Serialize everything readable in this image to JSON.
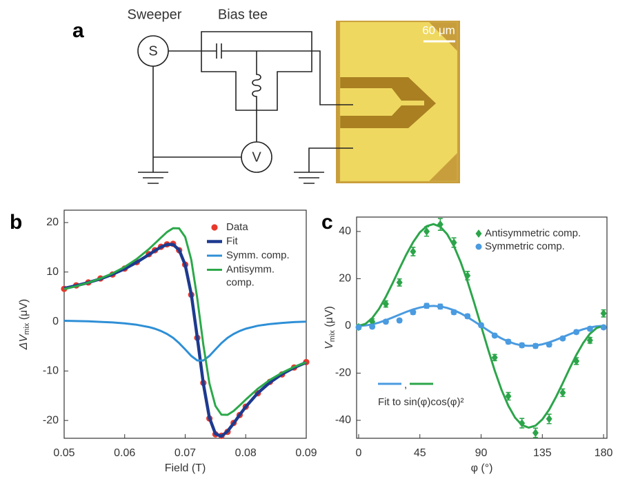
{
  "diagram": {
    "panel_label": "a",
    "sweeper": "Sweeper",
    "bias_tee": "Bias tee",
    "source_symbol": "S",
    "meter_symbol": "V",
    "scale_bar": "60 μm"
  },
  "chart_data": [
    {
      "type": "line",
      "panel_label": "b",
      "x_label": "Field (T)",
      "y_label": {
        "main": "ΔV",
        "sub": "mix",
        "unit": " (μV)"
      },
      "x": [
        0.05,
        0.052,
        0.054,
        0.056,
        0.058,
        0.06,
        0.062,
        0.064,
        0.065,
        0.066,
        0.067,
        0.068,
        0.069,
        0.07,
        0.071,
        0.072,
        0.073,
        0.074,
        0.075,
        0.076,
        0.077,
        0.078,
        0.079,
        0.08,
        0.082,
        0.084,
        0.086,
        0.088,
        0.09
      ],
      "series": [
        {
          "name": "Data",
          "mode": "markers",
          "color": "#e8382c",
          "values": [
            6.6,
            7.3,
            7.9,
            8.7,
            9.5,
            10.7,
            12.0,
            13.6,
            14.4,
            15.1,
            15.6,
            15.7,
            14.4,
            11.5,
            5.4,
            -3.3,
            -12.4,
            -19.6,
            -22.8,
            -23.1,
            -22.3,
            -20.5,
            -18.9,
            -17.2,
            -14.5,
            -12.2,
            -10.7,
            -9.3,
            -8.2
          ]
        },
        {
          "name": "Fit",
          "mode": "line",
          "color": "#1d3a8f",
          "values": [
            6.69,
            7.23,
            7.88,
            8.63,
            9.55,
            10.65,
            11.98,
            13.52,
            14.32,
            15.05,
            15.57,
            15.56,
            14.47,
            11.44,
            5.53,
            -3.19,
            -12.55,
            -19.45,
            -22.72,
            -23.19,
            -22.18,
            -20.59,
            -18.87,
            -17.24,
            -14.45,
            -12.3,
            -10.63,
            -9.31,
            -8.27
          ]
        },
        {
          "name": "Symm. comp.",
          "mode": "line",
          "color": "#2e8fd6",
          "values": [
            0.14,
            0.09,
            0.03,
            -0.07,
            -0.19,
            -0.38,
            -0.66,
            -1.12,
            -1.46,
            -1.91,
            -2.51,
            -3.31,
            -4.36,
            -5.64,
            -6.96,
            -7.87,
            -7.87,
            -6.96,
            -5.64,
            -4.36,
            -3.31,
            -2.51,
            -1.91,
            -1.46,
            -0.86,
            -0.51,
            -0.28,
            -0.12,
            -0.02
          ]
        },
        {
          "name": "Antisymm. comp.",
          "mode": "line",
          "color": "#2ba84a",
          "values": [
            6.55,
            7.14,
            7.85,
            8.7,
            9.74,
            11.03,
            12.64,
            14.64,
            15.78,
            16.96,
            18.08,
            18.87,
            18.83,
            17.08,
            12.49,
            4.68,
            -4.68,
            -12.49,
            -17.08,
            -18.83,
            -18.87,
            -18.08,
            -16.96,
            -15.78,
            -13.59,
            -11.79,
            -10.35,
            -9.19,
            -8.25
          ]
        }
      ],
      "xlim": [
        0.05,
        0.09
      ],
      "xticks": [
        0.05,
        0.06,
        0.07,
        0.08,
        0.09
      ],
      "ylim": [
        -23.6,
        22.5
      ],
      "yticks": [
        -20,
        -10,
        0,
        10,
        20
      ]
    },
    {
      "type": "scatter",
      "panel_label": "c",
      "x_label": "φ (°)",
      "y_label": {
        "main": "V",
        "sub": "mix",
        "unit": " (μV)"
      },
      "series": [
        {
          "name": "Antisymmetric comp.",
          "marker": "diamond",
          "color": "#2ca54a",
          "x": [
            0,
            10,
            20,
            30,
            40,
            50,
            60,
            70,
            80,
            100,
            110,
            120,
            130,
            140,
            150,
            160,
            170,
            180
          ],
          "values": [
            -0.5,
            1.8,
            9.3,
            18.4,
            31.5,
            40,
            43,
            35.3,
            21.3,
            -13.4,
            -29.8,
            -41.2,
            -45.3,
            -39.4,
            -28.3,
            -14.9,
            -6.1,
            5.3
          ],
          "errors": [
            1,
            1.2,
            1.3,
            1.5,
            1.8,
            2,
            2.5,
            2,
            1.8,
            1.3,
            1.6,
            2,
            2,
            2,
            1.6,
            1.4,
            1.2,
            1.5
          ]
        },
        {
          "name": "Symmetric comp.",
          "marker": "circle",
          "color": "#4a9be0",
          "x": [
            0,
            10,
            20,
            30,
            40,
            50,
            60,
            70,
            80,
            90,
            100,
            110,
            120,
            130,
            140,
            150,
            160,
            170,
            180
          ],
          "values": [
            -0.6,
            -0.3,
            1.8,
            2.3,
            5.8,
            8.5,
            8.2,
            5.8,
            4.1,
            0.3,
            -4.1,
            -6.7,
            -8.2,
            -8.5,
            -7.9,
            -5.3,
            -2.6,
            -1.2,
            -0.6
          ],
          "errors": [
            0.8,
            0.8,
            0.8,
            0.8,
            0.9,
            1,
            1,
            0.9,
            0.9,
            0.8,
            0.8,
            0.9,
            0.9,
            0.9,
            0.9,
            0.8,
            0.8,
            0.8,
            0.8
          ]
        }
      ],
      "fit_x": [
        0,
        5,
        10,
        15,
        20,
        25,
        30,
        35,
        40,
        45,
        50,
        55,
        60,
        65,
        70,
        75,
        80,
        85,
        90,
        95,
        100,
        105,
        110,
        115,
        120,
        125,
        130,
        135,
        140,
        145,
        150,
        155,
        160,
        165,
        170,
        175,
        180
      ],
      "fit_lines": [
        {
          "color": "#4a9be0",
          "values": [
            0,
            0.17,
            0.65,
            1.42,
            2.42,
            3.56,
            4.76,
            5.93,
            6.96,
            7.78,
            8.3,
            8.47,
            8.25,
            7.64,
            6.64,
            5.31,
            3.71,
            1.9,
            0,
            -1.9,
            -3.71,
            -5.31,
            -6.64,
            -7.64,
            -8.25,
            -8.47,
            -8.3,
            -7.78,
            -6.96,
            -5.93,
            -4.76,
            -3.56,
            -2.42,
            -1.42,
            -0.65,
            -0.17,
            0
          ]
        },
        {
          "color": "#2ca54a",
          "values": [
            0,
            0.85,
            3.33,
            7.25,
            12.31,
            18.13,
            24.25,
            30.18,
            35.45,
            39.6,
            42.25,
            43.11,
            42,
            38.88,
            33.83,
            27.05,
            18.86,
            9.69,
            0,
            -9.69,
            -18.86,
            -27.05,
            -33.83,
            -38.88,
            -42,
            -43.11,
            -42.25,
            -39.6,
            -35.45,
            -30.18,
            -24.25,
            -18.13,
            -12.31,
            -7.25,
            -3.33,
            -0.85,
            0
          ]
        }
      ],
      "annotation_separator": ",",
      "annotation": "Fit to sin(φ)cos(φ)²",
      "xlim": [
        -1.5,
        182.5
      ],
      "xticks": [
        0,
        45,
        90,
        135,
        180
      ],
      "ylim": [
        -47.6,
        46.1
      ],
      "yticks": [
        -40,
        -20,
        0,
        20,
        40
      ]
    }
  ]
}
